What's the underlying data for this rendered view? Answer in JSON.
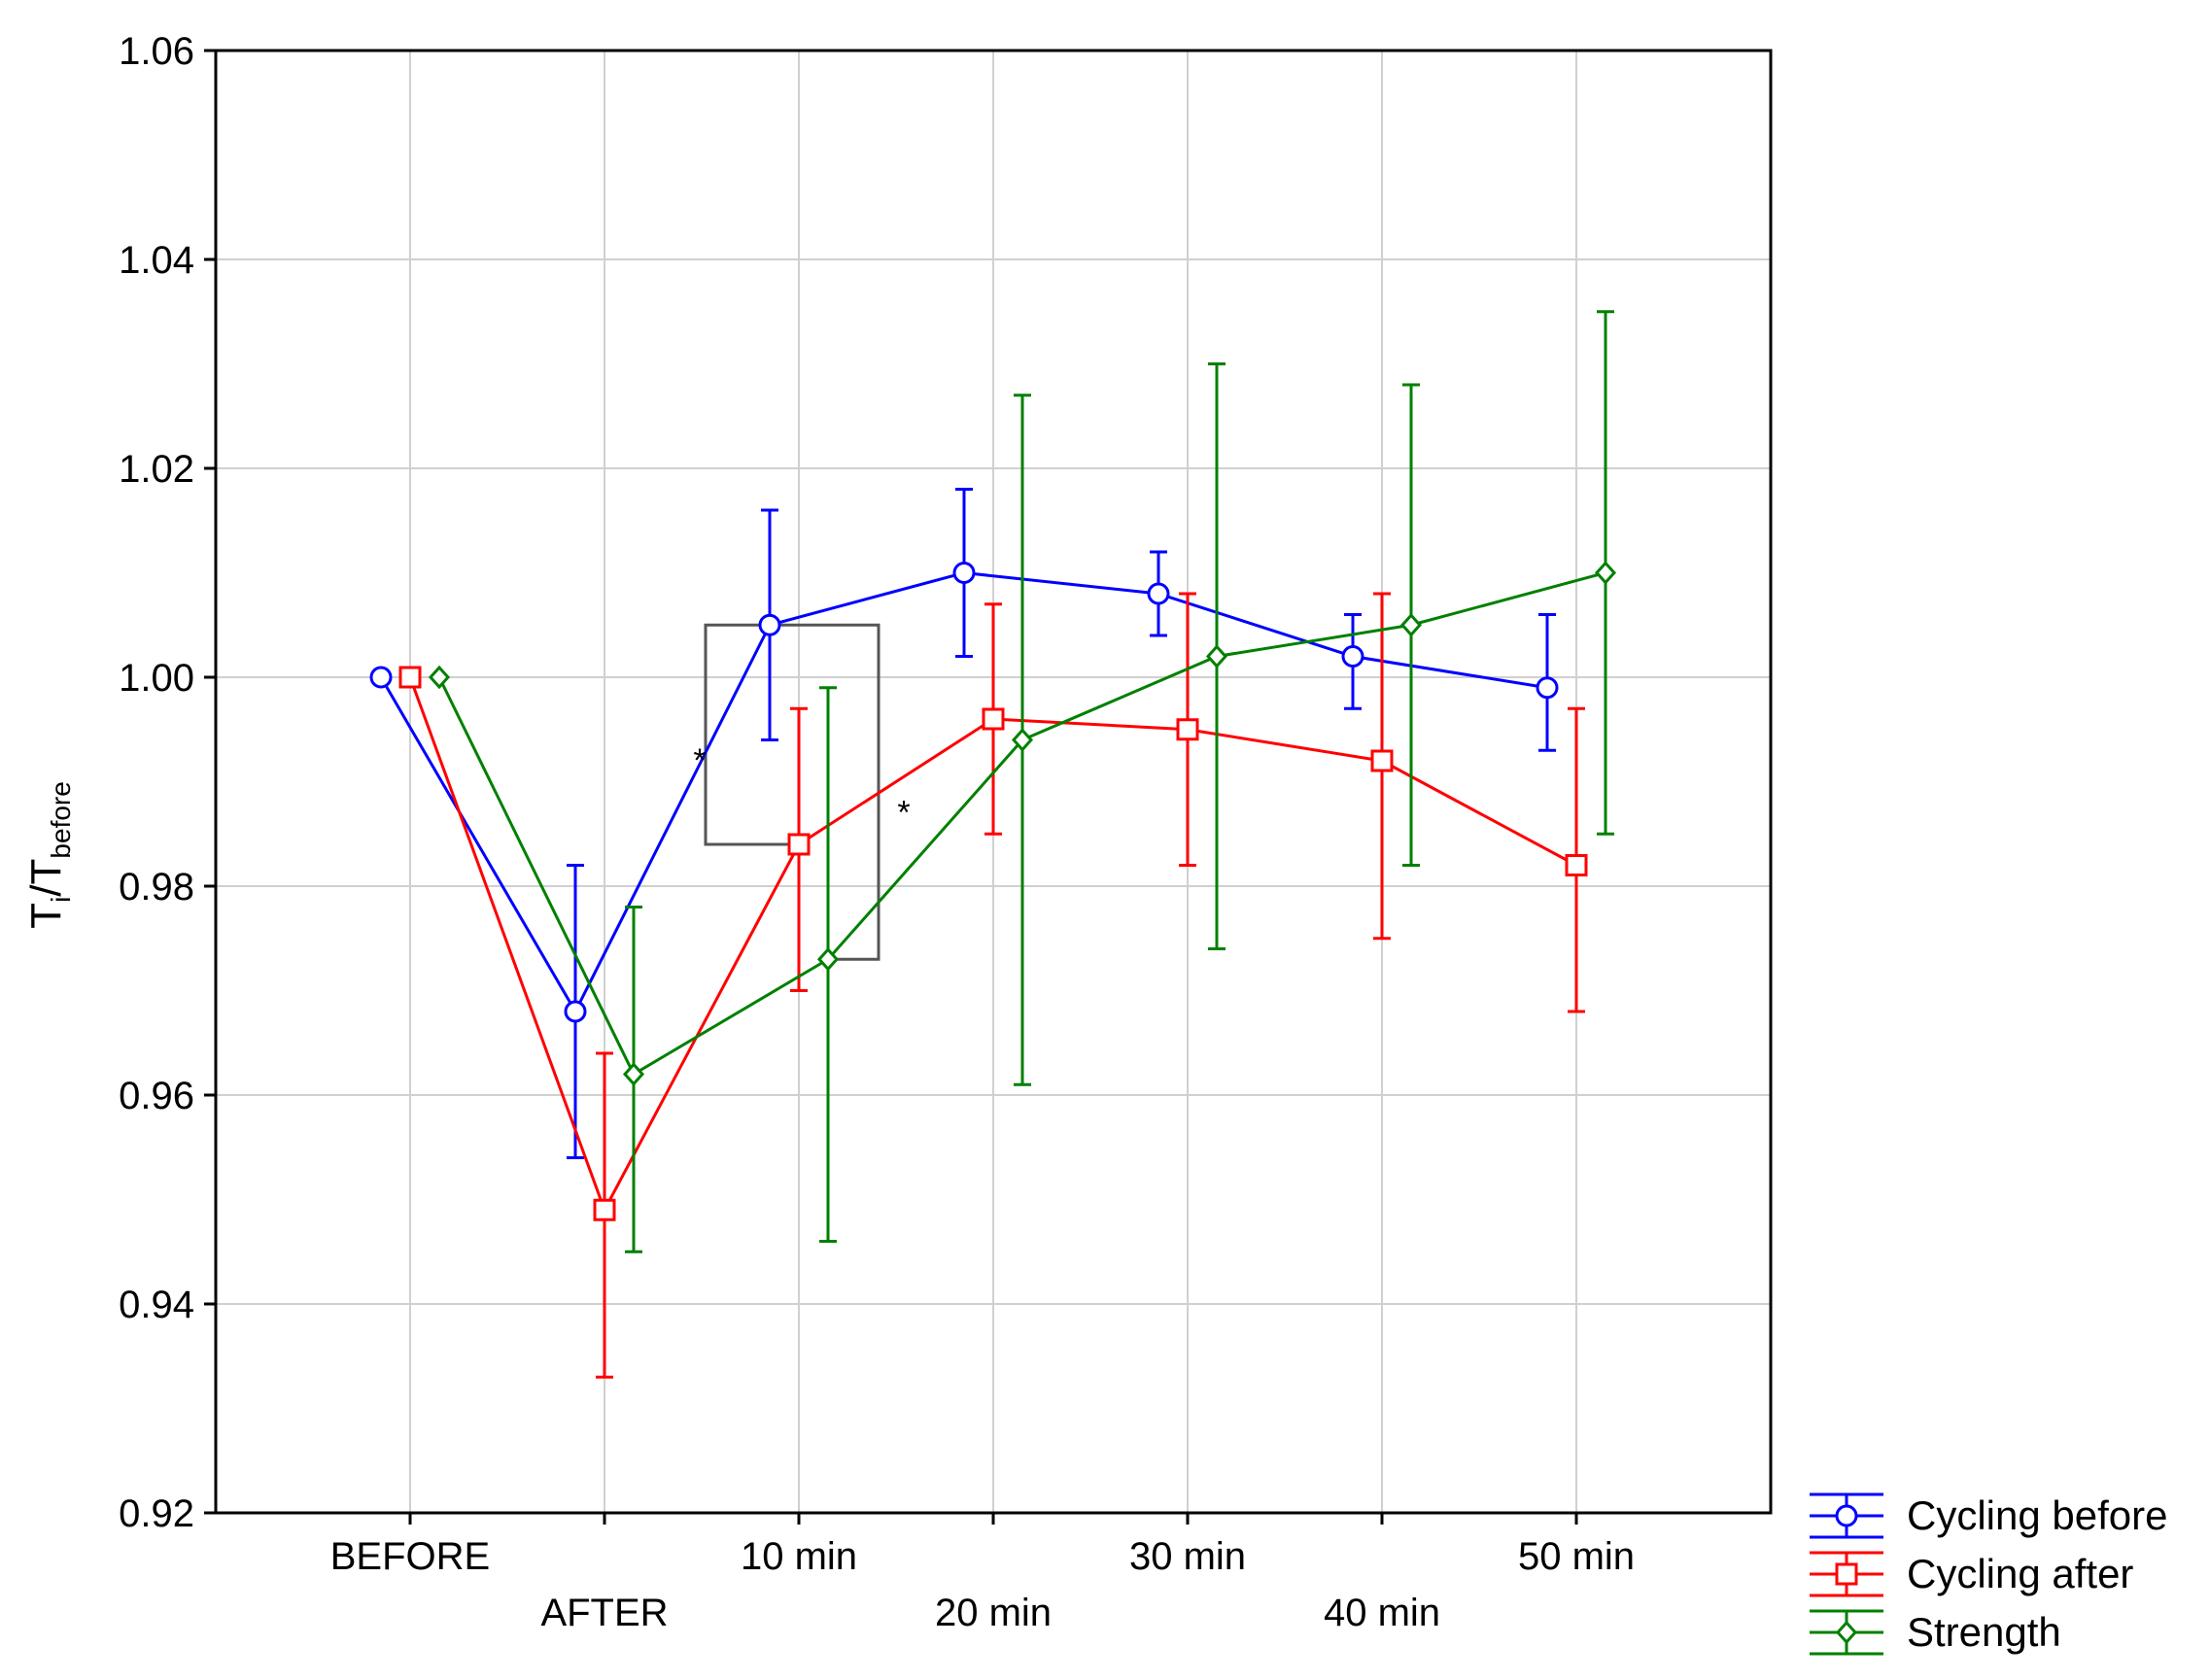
{
  "chart_data": {
    "type": "line",
    "ylabel_main": "T",
    "ylabel_sub1": "i",
    "ylabel_sep": "/T",
    "ylabel_sub2": "before",
    "xlabel": "",
    "ylim": [
      0.92,
      1.06
    ],
    "yticks": [
      0.92,
      0.94,
      0.96,
      0.98,
      1.0,
      1.02,
      1.04,
      1.06
    ],
    "ytick_labels": [
      "0.92",
      "0.94",
      "0.96",
      "0.98",
      "1.00",
      "1.02",
      "1.04",
      "1.06"
    ],
    "categories": [
      "BEFORE",
      "AFTER",
      "10 min",
      "20 min",
      "30 min",
      "40 min",
      "50 min"
    ],
    "grid": true,
    "legend_position": "bottom-right, outside plot",
    "series": [
      {
        "name": "Cycling before",
        "color": "#0000ff",
        "marker": "circle",
        "values": [
          1.0,
          0.968,
          1.005,
          1.01,
          1.008,
          1.002,
          0.999
        ],
        "err_low": [
          1.0,
          0.954,
          0.994,
          1.002,
          1.004,
          0.997,
          0.993
        ],
        "err_high": [
          1.0,
          0.982,
          1.016,
          1.018,
          1.012,
          1.006,
          1.006
        ]
      },
      {
        "name": "Cycling after",
        "color": "#ff0000",
        "marker": "square",
        "values": [
          1.0,
          0.949,
          0.984,
          0.996,
          0.995,
          0.992,
          0.982
        ],
        "err_low": [
          1.0,
          0.933,
          0.97,
          0.985,
          0.982,
          0.975,
          0.968
        ],
        "err_high": [
          1.0,
          0.964,
          0.997,
          1.007,
          1.008,
          1.008,
          0.997
        ]
      },
      {
        "name": "Strength",
        "color": "#008000",
        "marker": "diamond",
        "values": [
          1.0,
          0.962,
          0.973,
          0.994,
          1.002,
          1.005,
          1.01
        ],
        "err_low": [
          1.0,
          0.945,
          0.946,
          0.961,
          0.974,
          0.982,
          0.985
        ],
        "err_high": [
          1.0,
          0.978,
          0.999,
          1.027,
          1.03,
          1.028,
          1.035
        ]
      }
    ],
    "annotations": [
      {
        "text": "*",
        "category_index": 1.5,
        "y": 0.991
      },
      {
        "text": "*",
        "category_index": 2.5,
        "y": 0.986
      }
    ]
  }
}
